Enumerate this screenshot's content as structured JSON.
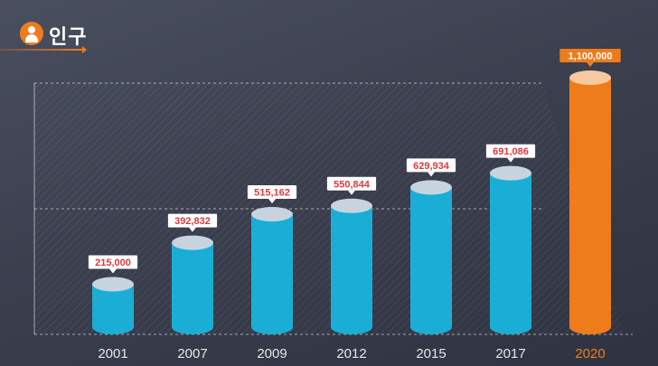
{
  "header": {
    "title": "인구",
    "icon": "person-icon"
  },
  "colors": {
    "bar": "#1aaed6",
    "bar_top": "#c7d4df",
    "highlight": "#ef7c1a",
    "value_text": "#e0393e",
    "axis_text": "#e6e6e6"
  },
  "chart_data": {
    "type": "bar",
    "categories": [
      "2001",
      "2007",
      "2009",
      "2012",
      "2015",
      "2017",
      "2020"
    ],
    "values": [
      215000,
      392832,
      515162,
      550844,
      629934,
      691086,
      1100000
    ],
    "value_labels": [
      "215,000",
      "392,832",
      "515,162",
      "550,844",
      "629,934",
      "691,086",
      "1,100,000"
    ],
    "highlight_index": 6,
    "xlabel": "",
    "ylabel": "",
    "ylim": [
      0,
      1100000
    ]
  }
}
